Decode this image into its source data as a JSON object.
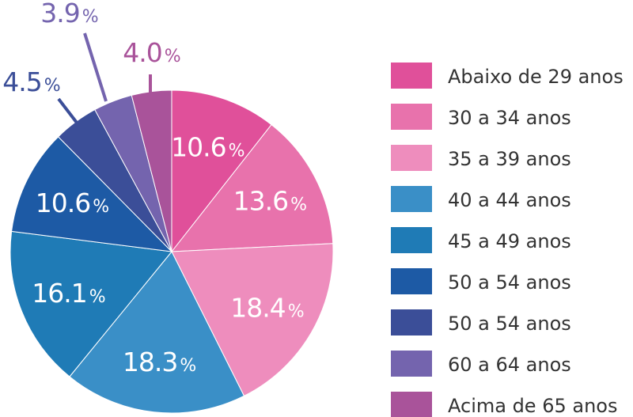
{
  "chart_data": {
    "type": "pie",
    "title": "",
    "percent_symbol": "%",
    "slices": [
      {
        "label": "Abaixo de 29 anos",
        "value": 10.6,
        "display": "10.6",
        "color": "#e0509a"
      },
      {
        "label": "30 a 34 anos",
        "value": 13.6,
        "display": "13.6",
        "color": "#e872ac"
      },
      {
        "label": "35 a 39 anos",
        "value": 18.4,
        "display": "18.4",
        "color": "#ee8dbd"
      },
      {
        "label": "40 a 44 anos",
        "value": 18.3,
        "display": "18.3",
        "color": "#3a8fc7"
      },
      {
        "label": "45 a 49 anos",
        "value": 16.1,
        "display": "16.1",
        "color": "#1f7bb6"
      },
      {
        "label": "50 a 54 anos",
        "value": 10.6,
        "display": "10.6",
        "color": "#1d5aa5"
      },
      {
        "label": "50 a 54 anos",
        "value": 4.5,
        "display": "4.5",
        "color": "#3b4e98"
      },
      {
        "label": "60 a 64 anos",
        "value": 3.9,
        "display": "3.9",
        "color": "#7464ae"
      },
      {
        "label": "Acima de 65 anos",
        "value": 4.0,
        "display": "4.0",
        "color": "#a9539a"
      }
    ],
    "legend_position": "right",
    "label_colors": {
      "inside": "#ffffff"
    }
  }
}
